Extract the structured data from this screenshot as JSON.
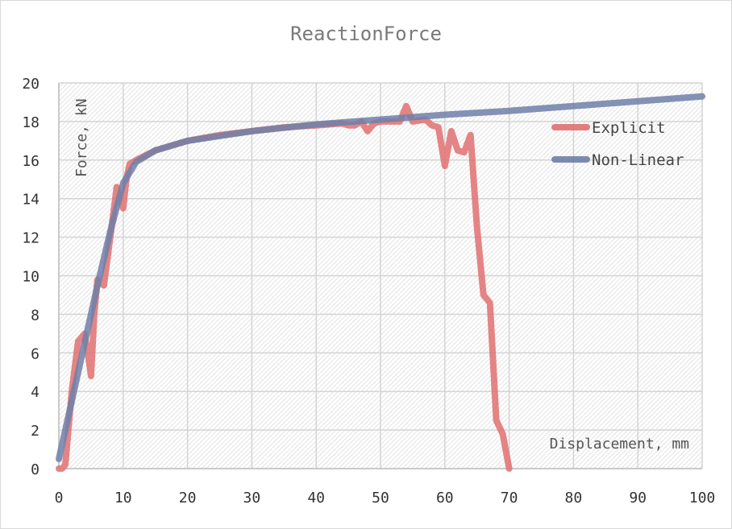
{
  "chart_data": {
    "type": "line",
    "title": "ReactionForce",
    "xlabel": "Displacement, mm",
    "ylabel": "Force, kN",
    "xlim": [
      0,
      100
    ],
    "ylim": [
      0,
      20
    ],
    "x_ticks": [
      "0",
      "10",
      "20",
      "30",
      "40",
      "50",
      "60",
      "70",
      "80",
      "90",
      "100"
    ],
    "y_ticks": [
      "0",
      "2",
      "4",
      "6",
      "8",
      "10",
      "12",
      "14",
      "16",
      "18",
      "20"
    ],
    "grid": true,
    "legend_position": "top-right",
    "series": [
      {
        "name": "Explicit",
        "color": "#e07070",
        "points": [
          [
            0,
            0
          ],
          [
            0.5,
            0
          ],
          [
            1,
            0.2
          ],
          [
            2,
            4
          ],
          [
            3,
            6.6
          ],
          [
            4,
            7
          ],
          [
            4.5,
            6
          ],
          [
            5,
            4.8
          ],
          [
            5.5,
            8
          ],
          [
            6,
            9.8
          ],
          [
            7,
            9.5
          ],
          [
            8,
            12
          ],
          [
            9,
            14.6
          ],
          [
            10,
            13.5
          ],
          [
            10.5,
            15
          ],
          [
            11,
            15.8
          ],
          [
            12,
            16
          ],
          [
            15,
            16.5
          ],
          [
            20,
            17
          ],
          [
            25,
            17.3
          ],
          [
            30,
            17.5
          ],
          [
            35,
            17.7
          ],
          [
            40,
            17.8
          ],
          [
            44,
            17.9
          ],
          [
            45,
            17.8
          ],
          [
            46,
            17.8
          ],
          [
            47,
            18
          ],
          [
            48,
            17.5
          ],
          [
            49,
            17.9
          ],
          [
            50,
            18
          ],
          [
            53,
            18
          ],
          [
            54,
            18.8
          ],
          [
            55,
            18
          ],
          [
            57,
            18.1
          ],
          [
            58,
            17.8
          ],
          [
            59,
            17.7
          ],
          [
            60,
            15.7
          ],
          [
            61,
            17.5
          ],
          [
            62,
            16.5
          ],
          [
            63,
            16.4
          ],
          [
            64,
            17.3
          ],
          [
            65,
            12.5
          ],
          [
            66,
            9
          ],
          [
            67,
            8.6
          ],
          [
            68,
            2.5
          ],
          [
            69,
            1.8
          ],
          [
            70,
            0
          ]
        ]
      },
      {
        "name": "Non-Linear",
        "color": "#6e7fa8",
        "points": [
          [
            0,
            0.5
          ],
          [
            2,
            3.5
          ],
          [
            4,
            6.5
          ],
          [
            6,
            9.5
          ],
          [
            8,
            12.3
          ],
          [
            10,
            14.8
          ],
          [
            12,
            15.9
          ],
          [
            15,
            16.5
          ],
          [
            20,
            17
          ],
          [
            30,
            17.5
          ],
          [
            40,
            17.85
          ],
          [
            50,
            18.1
          ],
          [
            60,
            18.35
          ],
          [
            70,
            18.55
          ],
          [
            80,
            18.8
          ],
          [
            90,
            19.05
          ],
          [
            100,
            19.3
          ]
        ]
      }
    ]
  }
}
